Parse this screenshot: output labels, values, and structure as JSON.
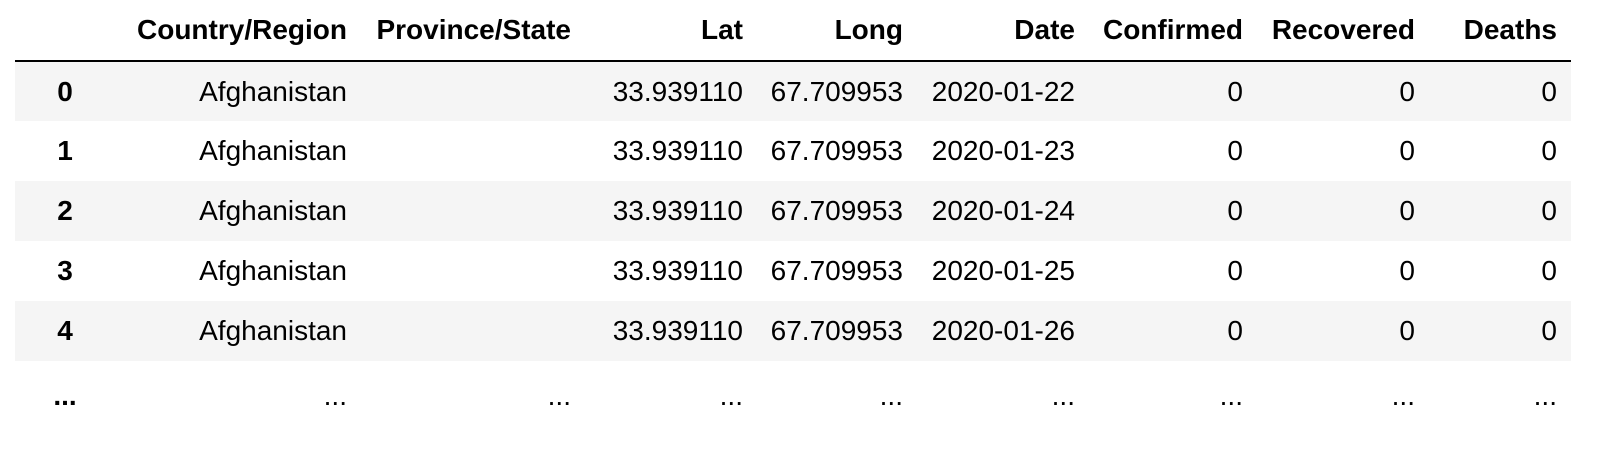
{
  "table": {
    "index_header": "",
    "columns": [
      "Country/Region",
      "Province/State",
      "Lat",
      "Long",
      "Date",
      "Confirmed",
      "Recovered",
      "Deaths"
    ],
    "rows": [
      {
        "index": "0",
        "cells": [
          "Afghanistan",
          "",
          "33.939110",
          "67.709953",
          "2020-01-22",
          "0",
          "0",
          "0"
        ]
      },
      {
        "index": "1",
        "cells": [
          "Afghanistan",
          "",
          "33.939110",
          "67.709953",
          "2020-01-23",
          "0",
          "0",
          "0"
        ]
      },
      {
        "index": "2",
        "cells": [
          "Afghanistan",
          "",
          "33.939110",
          "67.709953",
          "2020-01-24",
          "0",
          "0",
          "0"
        ]
      },
      {
        "index": "3",
        "cells": [
          "Afghanistan",
          "",
          "33.939110",
          "67.709953",
          "2020-01-25",
          "0",
          "0",
          "0"
        ]
      },
      {
        "index": "4",
        "cells": [
          "Afghanistan",
          "",
          "33.939110",
          "67.709953",
          "2020-01-26",
          "0",
          "0",
          "0"
        ]
      }
    ],
    "ellipsis_row": {
      "index": "...",
      "cells": [
        "...",
        "...",
        "...",
        "...",
        "...",
        "...",
        "...",
        "..."
      ]
    }
  }
}
